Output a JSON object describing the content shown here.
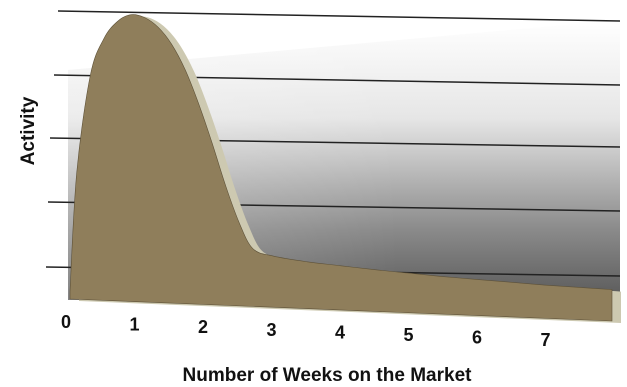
{
  "chart_data": {
    "type": "area",
    "title": "",
    "xlabel": "Number of Weeks on the Market",
    "ylabel": "Activity",
    "xlim": [
      0,
      8
    ],
    "ylim": [
      0,
      5
    ],
    "grid": true,
    "x_ticks": [
      "0",
      "1",
      "2",
      "3",
      "4",
      "5",
      "6",
      "7"
    ],
    "y_ticks_labeled": false,
    "series": [
      {
        "x": [
          0,
          0.1,
          0.3,
          0.5,
          0.7,
          0.9,
          1.1,
          1.3,
          1.5,
          1.7,
          1.9,
          2.1,
          2.3,
          2.5,
          2.7,
          3.0,
          3.5,
          4.0,
          4.5,
          5.0,
          5.5,
          6.0,
          6.5,
          7.0,
          7.5,
          8.0
        ],
        "y": [
          0.1,
          2.2,
          3.9,
          4.55,
          4.85,
          4.97,
          4.92,
          4.75,
          4.45,
          4.0,
          3.4,
          2.7,
          1.95,
          1.3,
          0.85,
          0.72,
          0.62,
          0.55,
          0.48,
          0.42,
          0.36,
          0.31,
          0.26,
          0.21,
          0.17,
          0.13
        ]
      }
    ],
    "colors": {
      "fill": "#8f7e5b",
      "side": "#cdc9b1",
      "outline": "#5d5138",
      "gridline": "#222222"
    }
  }
}
